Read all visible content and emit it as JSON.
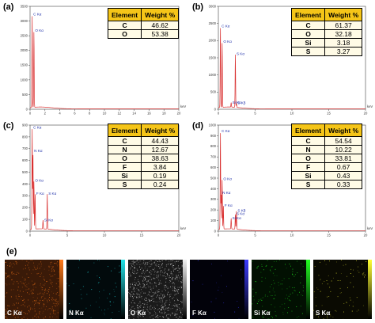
{
  "panels": {
    "a": "(a)",
    "b": "(b)",
    "c": "(c)",
    "d": "(d)",
    "e": "(e)"
  },
  "table_headers": {
    "element": "Element",
    "weight": "Weight %"
  },
  "chart_data": [
    {
      "type": "line",
      "panel": "(a)",
      "xlabel": "keV",
      "xlim": [
        0,
        20
      ],
      "ylim": [
        0,
        3500
      ],
      "x_ticks": [
        0,
        2,
        4,
        6,
        8,
        10,
        12,
        14,
        16,
        18,
        20
      ],
      "y_ticks": [
        0,
        500,
        1000,
        1500,
        2000,
        2500,
        3000,
        3500
      ],
      "peaks": [
        {
          "label": "C Kα",
          "x": 0.28,
          "y": 3150
        },
        {
          "label": "O Kα",
          "x": 0.52,
          "y": 2600
        }
      ],
      "table": [
        {
          "element": "C",
          "weight": "46.62"
        },
        {
          "element": "O",
          "weight": "53.38"
        }
      ]
    },
    {
      "type": "line",
      "panel": "(b)",
      "xlabel": "keV",
      "xlim": [
        0,
        20
      ],
      "ylim": [
        0,
        3000
      ],
      "x_ticks": [
        0,
        5,
        10,
        15,
        20
      ],
      "y_ticks": [
        0,
        500,
        1000,
        1500,
        2000,
        2500,
        3000
      ],
      "peaks": [
        {
          "label": "C Kα",
          "x": 0.28,
          "y": 2350
        },
        {
          "label": "O Kα",
          "x": 0.52,
          "y": 1900
        },
        {
          "label": "S Kα",
          "x": 2.31,
          "y": 1550
        },
        {
          "label": "Si Kα",
          "x": 1.74,
          "y": 130
        },
        {
          "label": "S Kβ",
          "x": 2.46,
          "y": 110
        }
      ],
      "table": [
        {
          "element": "C",
          "weight": "61.37"
        },
        {
          "element": "O",
          "weight": "32.18"
        },
        {
          "element": "Si",
          "weight": "3.18"
        },
        {
          "element": "S",
          "weight": "3.27"
        }
      ]
    },
    {
      "type": "line",
      "panel": "(c)",
      "xlabel": "keV",
      "xlim": [
        0,
        20
      ],
      "ylim": [
        0,
        900
      ],
      "x_ticks": [
        0,
        5,
        10,
        15,
        20
      ],
      "y_ticks": [
        0,
        100,
        200,
        300,
        400,
        500,
        600,
        700,
        800,
        900
      ],
      "peaks": [
        {
          "label": "C Kα",
          "x": 0.28,
          "y": 860
        },
        {
          "label": "N Kα",
          "x": 0.39,
          "y": 660
        },
        {
          "label": "O Kα",
          "x": 0.52,
          "y": 410
        },
        {
          "label": "F Kα",
          "x": 0.68,
          "y": 300
        },
        {
          "label": "S Kα",
          "x": 2.31,
          "y": 300
        },
        {
          "label": "Si Kα",
          "x": 1.74,
          "y": 75
        }
      ],
      "table": [
        {
          "element": "C",
          "weight": "44.43"
        },
        {
          "element": "N",
          "weight": "12.67"
        },
        {
          "element": "O",
          "weight": "38.63"
        },
        {
          "element": "F",
          "weight": "3.84"
        },
        {
          "element": "Si",
          "weight": "0.19"
        },
        {
          "element": "S",
          "weight": "0.24"
        }
      ]
    },
    {
      "type": "line",
      "panel": "(d)",
      "xlabel": "keV",
      "xlim": [
        0,
        20
      ],
      "ylim": [
        0,
        1000
      ],
      "x_ticks": [
        0,
        5,
        10,
        15,
        20
      ],
      "y_ticks": [
        0,
        100,
        200,
        300,
        400,
        500,
        600,
        700,
        800,
        900,
        1000
      ],
      "peaks": [
        {
          "label": "C Kα",
          "x": 0.28,
          "y": 920
        },
        {
          "label": "O Kα",
          "x": 0.52,
          "y": 470
        },
        {
          "label": "N Kα",
          "x": 0.39,
          "y": 340
        },
        {
          "label": "F Kα",
          "x": 0.68,
          "y": 220
        },
        {
          "label": "S Kβ",
          "x": 2.46,
          "y": 170
        },
        {
          "label": "S Kα",
          "x": 2.31,
          "y": 140
        },
        {
          "label": "Si Kα",
          "x": 1.74,
          "y": 100
        }
      ],
      "table": [
        {
          "element": "C",
          "weight": "54.54"
        },
        {
          "element": "N",
          "weight": "10.22"
        },
        {
          "element": "O",
          "weight": "33.81"
        },
        {
          "element": "F",
          "weight": "0.67"
        },
        {
          "element": "Si",
          "weight": "0.43"
        },
        {
          "element": "S",
          "weight": "0.33"
        }
      ]
    }
  ],
  "maps": [
    {
      "label": "C Kα",
      "color": "#ff7a1a",
      "bg": "#3a1a08"
    },
    {
      "label": "N Kα",
      "color": "#22e0e6",
      "bg": "#020a0c"
    },
    {
      "label": "O Kα",
      "color": "#f0f0f0",
      "bg": "#1a1a1a"
    },
    {
      "label": "F Kα",
      "color": "#3b3bff",
      "bg": "#02020a"
    },
    {
      "label": "Si Kα",
      "color": "#22ff22",
      "bg": "#021002"
    },
    {
      "label": "S Kα",
      "color": "#ffff33",
      "bg": "#0a0a02"
    }
  ]
}
